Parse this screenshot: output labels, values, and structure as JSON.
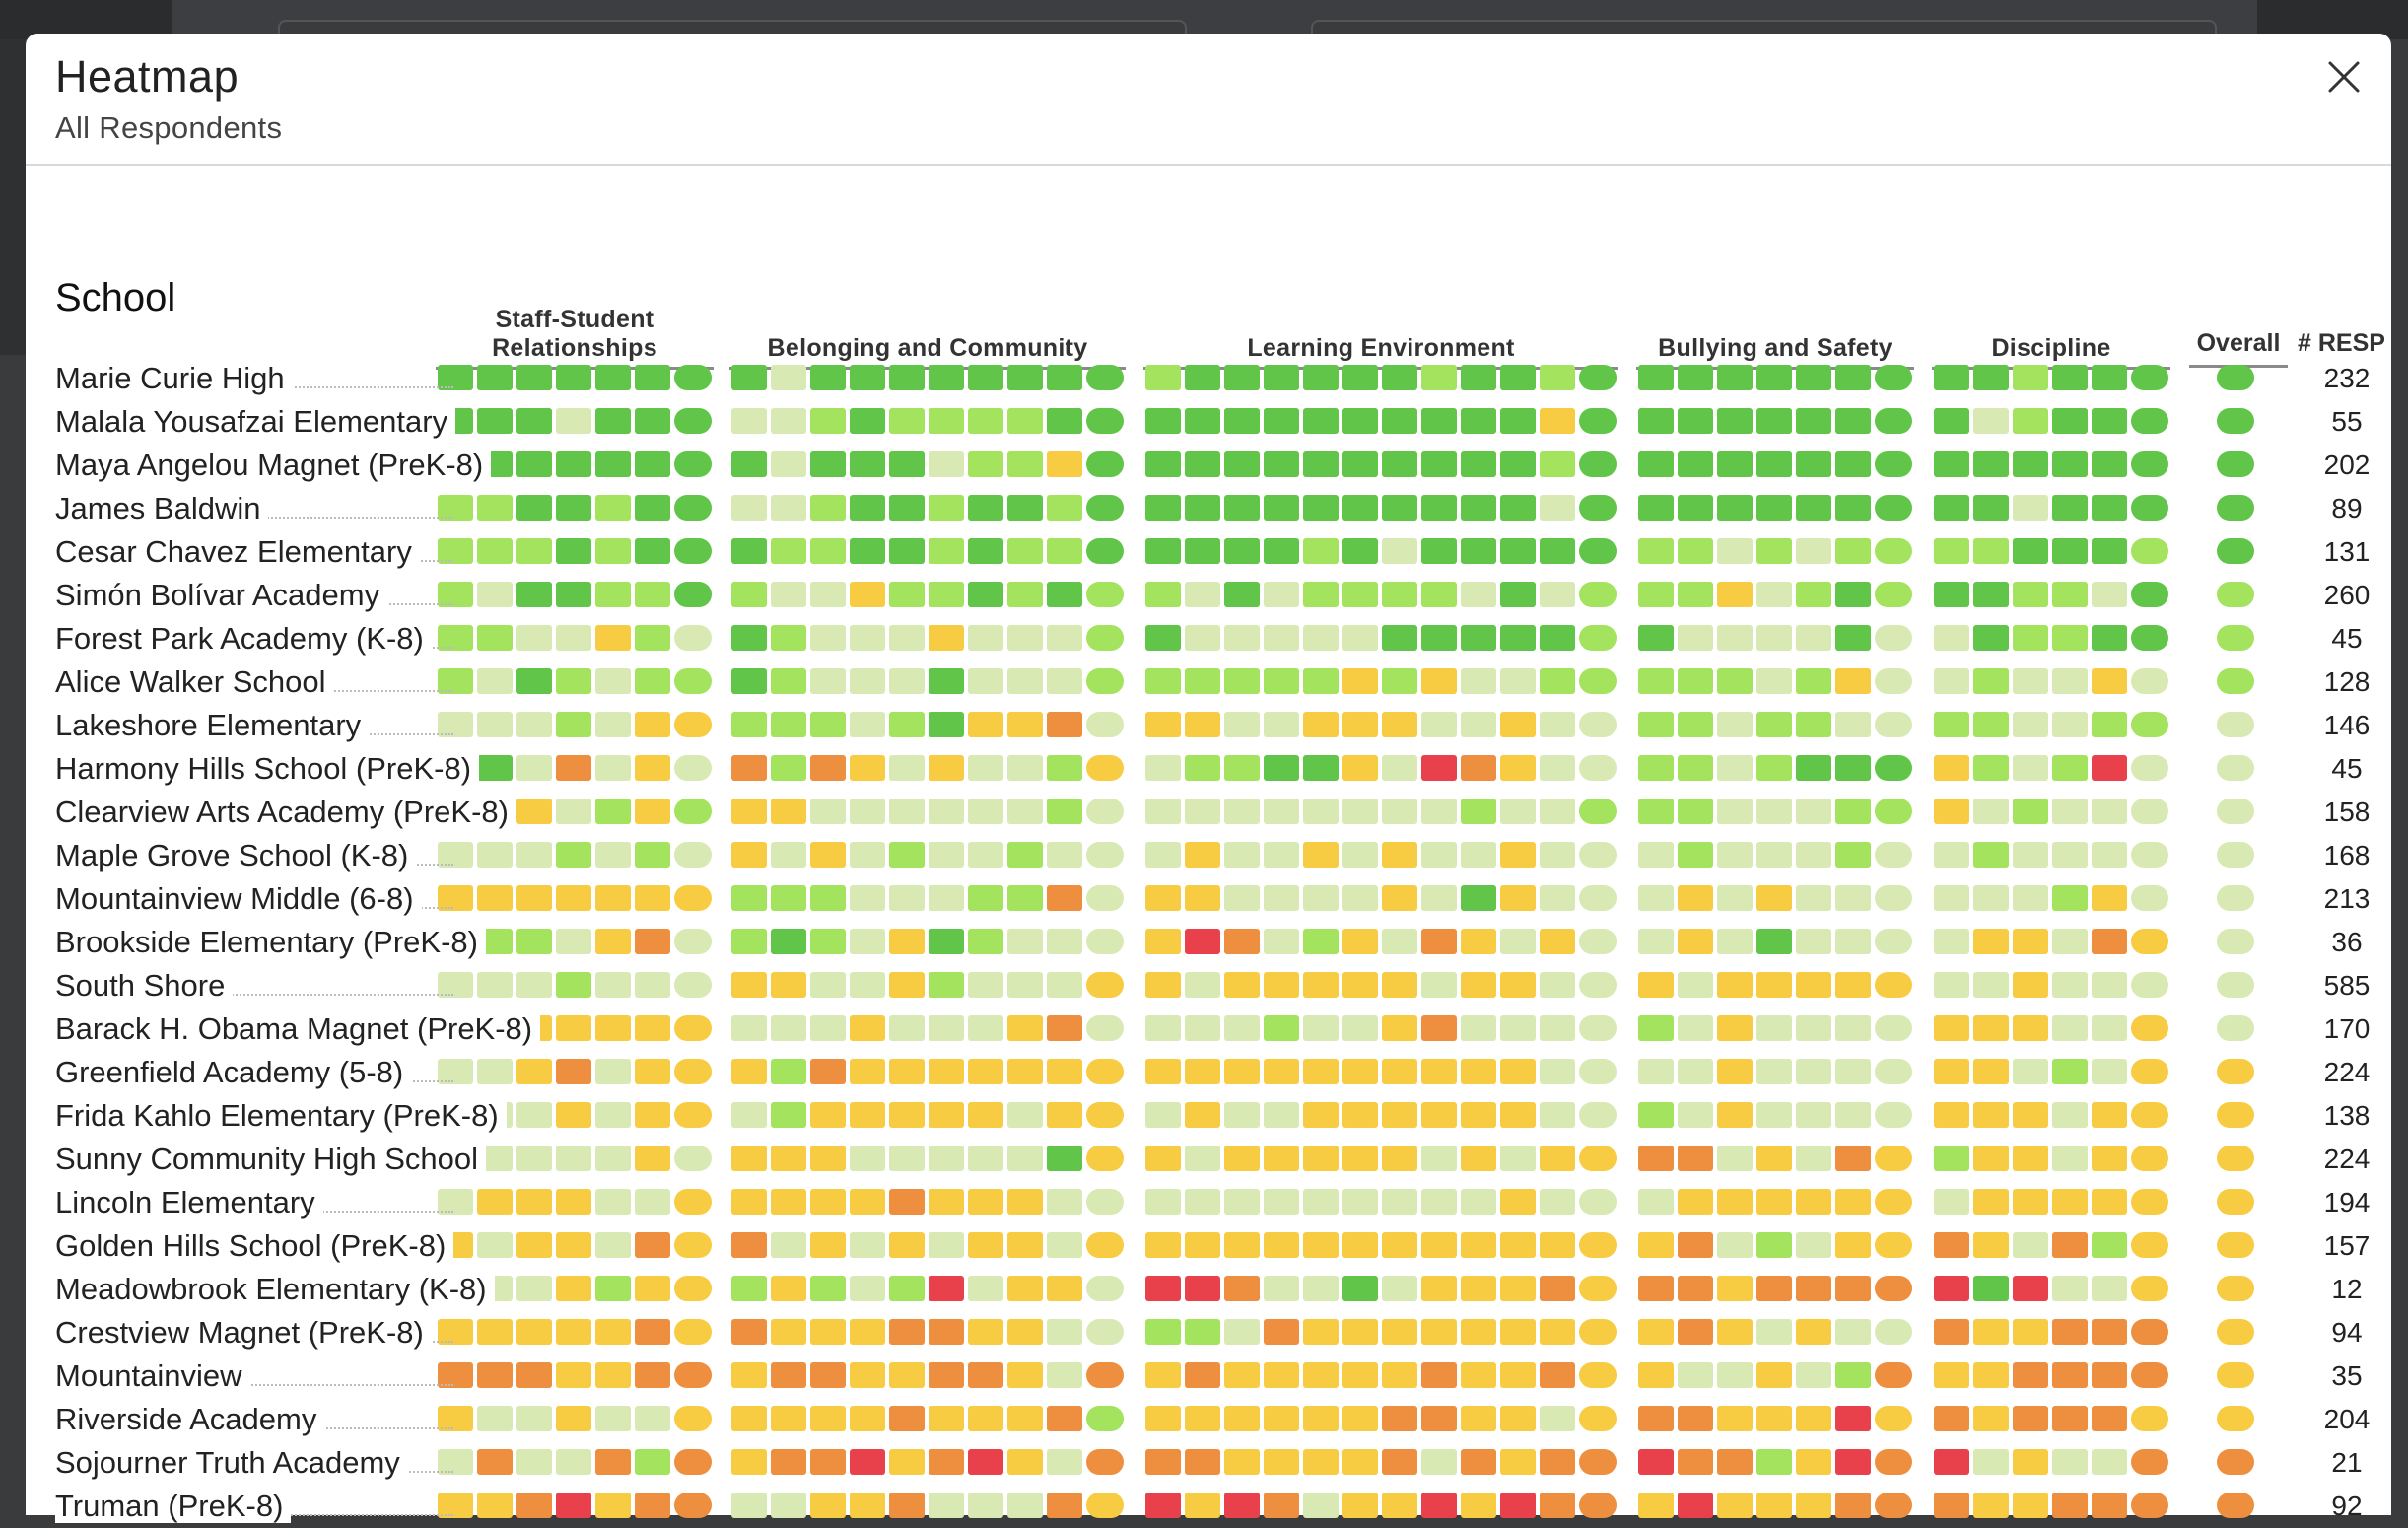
{
  "colors": {
    "1": "#e8414c",
    "2": "#ee8f3f",
    "3": "#f8cc42",
    "4": "#d8e9b4",
    "5": "#a4e35d",
    "6": "#60c548"
  },
  "modal": {
    "title": "Heatmap",
    "subtitle": "All Respondents",
    "close_icon": "close-icon"
  },
  "table": {
    "school_header": "School",
    "groups": [
      {
        "title": "Staff-Student Relationships",
        "cells": 7
      },
      {
        "title": "Belonging and Community",
        "cells": 10
      },
      {
        "title": "Learning Environment",
        "cells": 12
      },
      {
        "title": "Bullying and Safety",
        "cells": 7
      },
      {
        "title": "Discipline",
        "cells": 6
      }
    ],
    "overall_header": "Overall",
    "responses_header": "# RESP",
    "rows": [
      {
        "school": "Marie Curie High",
        "responses": "232",
        "overall": 6,
        "groups": [
          "6666666",
          "6466666666",
          "566666656656",
          "6666666",
          "665666"
        ]
      },
      {
        "school": "Malala Yousafzai Elementary",
        "responses": "55",
        "overall": 6,
        "groups": [
          "6664666",
          "4456555566",
          "666666666636",
          "6666666",
          "645666"
        ]
      },
      {
        "school": "Maya Angelou Magnet (PreK-8)",
        "responses": "202",
        "overall": 6,
        "groups": [
          "6666666",
          "6466645536",
          "666666666656",
          "6666666",
          "666666"
        ]
      },
      {
        "school": "James Baldwin",
        "responses": "89",
        "overall": 6,
        "groups": [
          "5566566",
          "4456656656",
          "666666666646",
          "6666666",
          "664666"
        ]
      },
      {
        "school": "Cesar Chavez Elementary",
        "responses": "131",
        "overall": 6,
        "groups": [
          "5556566",
          "6556656556",
          "666656466666",
          "5545455",
          "556665"
        ]
      },
      {
        "school": "Simón Bolívar Academy",
        "responses": "260",
        "overall": 5,
        "groups": [
          "5466556",
          "5443556565",
          "546455554645",
          "5534565",
          "665546"
        ]
      },
      {
        "school": "Forest Park Academy (K-8)",
        "responses": "45",
        "overall": 5,
        "groups": [
          "5544354",
          "6544434445",
          "644444666665",
          "6444464",
          "465566"
        ]
      },
      {
        "school": "Alice Walker School",
        "responses": "128",
        "overall": 5,
        "groups": [
          "5465455",
          "6544464445",
          "555553534455",
          "5554534",
          "454434"
        ]
      },
      {
        "school": "Lakeshore Elementary",
        "responses": "146",
        "overall": 4,
        "groups": [
          "4445433",
          "5554563324",
          "334433344344",
          "5545544",
          "554455"
        ]
      },
      {
        "school": "Harmony Hills School (PreK-8)",
        "responses": "45",
        "overall": 4,
        "groups": [
          "4642434",
          "2523434453",
          "455663412344",
          "5545666",
          "354514"
        ]
      },
      {
        "school": "Clearview Arts Academy (PreK-8)",
        "responses": "158",
        "overall": 4,
        "groups": [
          "4534535",
          "3344444454",
          "444444445445",
          "5544455",
          "345444"
        ]
      },
      {
        "school": "Maple Grove School (K-8)",
        "responses": "168",
        "overall": 4,
        "groups": [
          "4445454",
          "3434544544",
          "434434344344",
          "4544454",
          "454444"
        ]
      },
      {
        "school": "Mountainview Middle (6-8)",
        "responses": "213",
        "overall": 4,
        "groups": [
          "3333333",
          "5554445524",
          "334444346344",
          "4343444",
          "444534"
        ]
      },
      {
        "school": "Brookside Elementary (PreK-8)",
        "responses": "36",
        "overall": 4,
        "groups": [
          "4554324",
          "5654365444",
          "312453423434",
          "4346444",
          "433423"
        ]
      },
      {
        "school": "South Shore",
        "responses": "585",
        "overall": 4,
        "groups": [
          "4445444",
          "3344354443",
          "343333343344",
          "3433333",
          "443444"
        ]
      },
      {
        "school": "Barack H. Obama Magnet (PreK-8)",
        "responses": "170",
        "overall": 4,
        "groups": [
          "4433333",
          "4443444324",
          "444544324444",
          "5434444",
          "333443"
        ]
      },
      {
        "school": "Greenfield Academy (5-8)",
        "responses": "224",
        "overall": 3,
        "groups": [
          "4432433",
          "3523333333",
          "333333333344",
          "4434444",
          "334543"
        ]
      },
      {
        "school": "Frida Kahlo Elementary (PreK-8)",
        "responses": "138",
        "overall": 3,
        "groups": [
          "3443433",
          "4533333433",
          "434433333344",
          "5434444",
          "333433"
        ]
      },
      {
        "school": "Sunny Community High School",
        "responses": "224",
        "overall": 3,
        "groups": [
          "4444434",
          "3334444463",
          "343333343433",
          "2243423",
          "533433"
        ]
      },
      {
        "school": "Lincoln Elementary",
        "responses": "194",
        "overall": 3,
        "groups": [
          "4333443",
          "3333233344",
          "444444444344",
          "4333333",
          "433333"
        ]
      },
      {
        "school": "Golden Hills School (PreK-8)",
        "responses": "157",
        "overall": 3,
        "groups": [
          "3433423",
          "2434343343",
          "333333333333",
          "3245433",
          "234253"
        ]
      },
      {
        "school": "Meadowbrook Elementary (K-8)",
        "responses": "12",
        "overall": 3,
        "groups": [
          "6443533",
          "5354514334",
          "112446433323",
          "2232222",
          "161443"
        ]
      },
      {
        "school": "Crestview Magnet (PreK-8)",
        "responses": "94",
        "overall": 3,
        "groups": [
          "3333323",
          "2333223344",
          "554233333333",
          "3234344",
          "233222"
        ]
      },
      {
        "school": "Mountainview",
        "responses": "35",
        "overall": 3,
        "groups": [
          "2223322",
          "3223322342",
          "323333323323",
          "3443452",
          "332222"
        ]
      },
      {
        "school": "Riverside Academy",
        "responses": "204",
        "overall": 3,
        "groups": [
          "3443443",
          "3333233325",
          "333333223343",
          "2233313",
          "232223"
        ]
      },
      {
        "school": "Sojourner Truth Academy",
        "responses": "21",
        "overall": 2,
        "groups": [
          "4244252",
          "3221321342",
          "223333242322",
          "1225312",
          "143442"
        ]
      },
      {
        "school": "Truman (PreK-8)",
        "responses": "92",
        "overall": 2,
        "groups": [
          "3321322",
          "4433244423",
          "131243313122",
          "3133322",
          "233222"
        ]
      }
    ]
  }
}
